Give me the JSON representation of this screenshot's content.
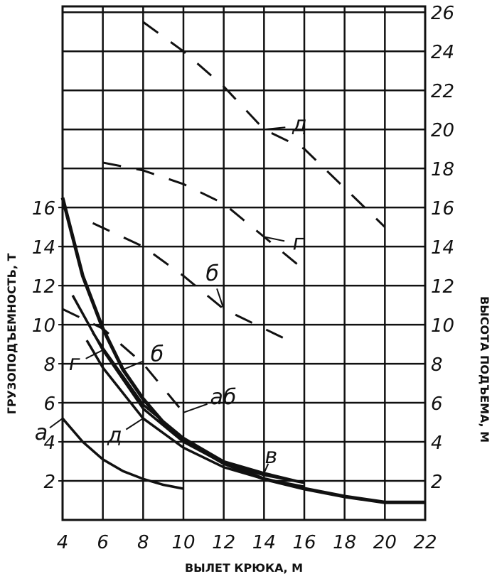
{
  "chart_data": {
    "type": "line",
    "xlabel": "ВЫЛЕТ КРЮКА, М",
    "ylabel": "ГРУЗОПОДЪЕМНОСТЬ, Т",
    "y2label": "ВЫСОТА ПОДЪЕМА, М",
    "xlim": [
      4,
      22
    ],
    "xticks": [
      4,
      6,
      8,
      10,
      12,
      14,
      16,
      18,
      20,
      22
    ],
    "ylim": [
      0,
      26.3
    ],
    "yticks": [
      2,
      4,
      6,
      8,
      10,
      12,
      14,
      16
    ],
    "y2lim": [
      0,
      26.3
    ],
    "y2ticks": [
      2,
      4,
      6,
      8,
      10,
      12,
      14,
      16,
      18,
      20,
      22,
      24,
      26
    ],
    "grid": true,
    "series": [
      {
        "name": "а",
        "color": "#111",
        "x": [
          4,
          5,
          6,
          7,
          8,
          9,
          10
        ],
        "values": [
          5.2,
          4.0,
          3.1,
          2.5,
          2.1,
          1.8,
          1.6
        ]
      },
      {
        "name": "б",
        "color": "#111",
        "x": [
          4,
          5,
          6,
          7,
          8,
          9,
          10,
          12,
          14,
          16,
          18,
          20,
          22
        ],
        "values": [
          16.5,
          12.5,
          9.8,
          7.7,
          6.2,
          5.0,
          4.1,
          2.9,
          2.1,
          1.6,
          1.2,
          0.9,
          0.9
        ]
      },
      {
        "name": "в",
        "color": "#111",
        "x": [
          5.5,
          6,
          8,
          10,
          12,
          14,
          16
        ],
        "values": [
          9.6,
          8.8,
          5.9,
          4.2,
          3.0,
          2.4,
          1.9
        ]
      },
      {
        "name": "г",
        "color": "#111",
        "x": [
          4.5,
          6,
          8,
          10,
          12,
          14,
          16
        ],
        "values": [
          11.5,
          8.7,
          5.7,
          4.0,
          2.9,
          2.3,
          1.9
        ]
      },
      {
        "name": "д",
        "color": "#111",
        "x": [
          5.2,
          6,
          8,
          10,
          12,
          14,
          16
        ],
        "values": [
          9.2,
          7.8,
          5.2,
          3.7,
          2.7,
          2.1,
          1.7
        ]
      },
      {
        "name": "д",
        "color": "#111",
        "axis": "y2",
        "x": [
          8,
          10,
          12,
          14,
          16,
          18,
          20
        ],
        "values": [
          25.5,
          24,
          22.2,
          20,
          19,
          17,
          15
        ]
      },
      {
        "name": "г",
        "color": "#111",
        "axis": "y2",
        "x": [
          6,
          8,
          10,
          12,
          14,
          16
        ],
        "values": [
          18.3,
          17.9,
          17.2,
          16.2,
          14.5,
          12.8
        ]
      },
      {
        "name": "б",
        "color": "#111",
        "axis": "y2",
        "x": [
          5.5,
          8,
          10,
          12,
          14,
          15
        ],
        "values": [
          15.2,
          14.0,
          12.5,
          10.8,
          9.8,
          9.3
        ]
      },
      {
        "name": "аб",
        "color": "#111",
        "axis": "y2",
        "x": [
          4,
          6,
          8,
          10
        ],
        "values": [
          10.8,
          9.8,
          8.0,
          5.5
        ]
      }
    ]
  }
}
